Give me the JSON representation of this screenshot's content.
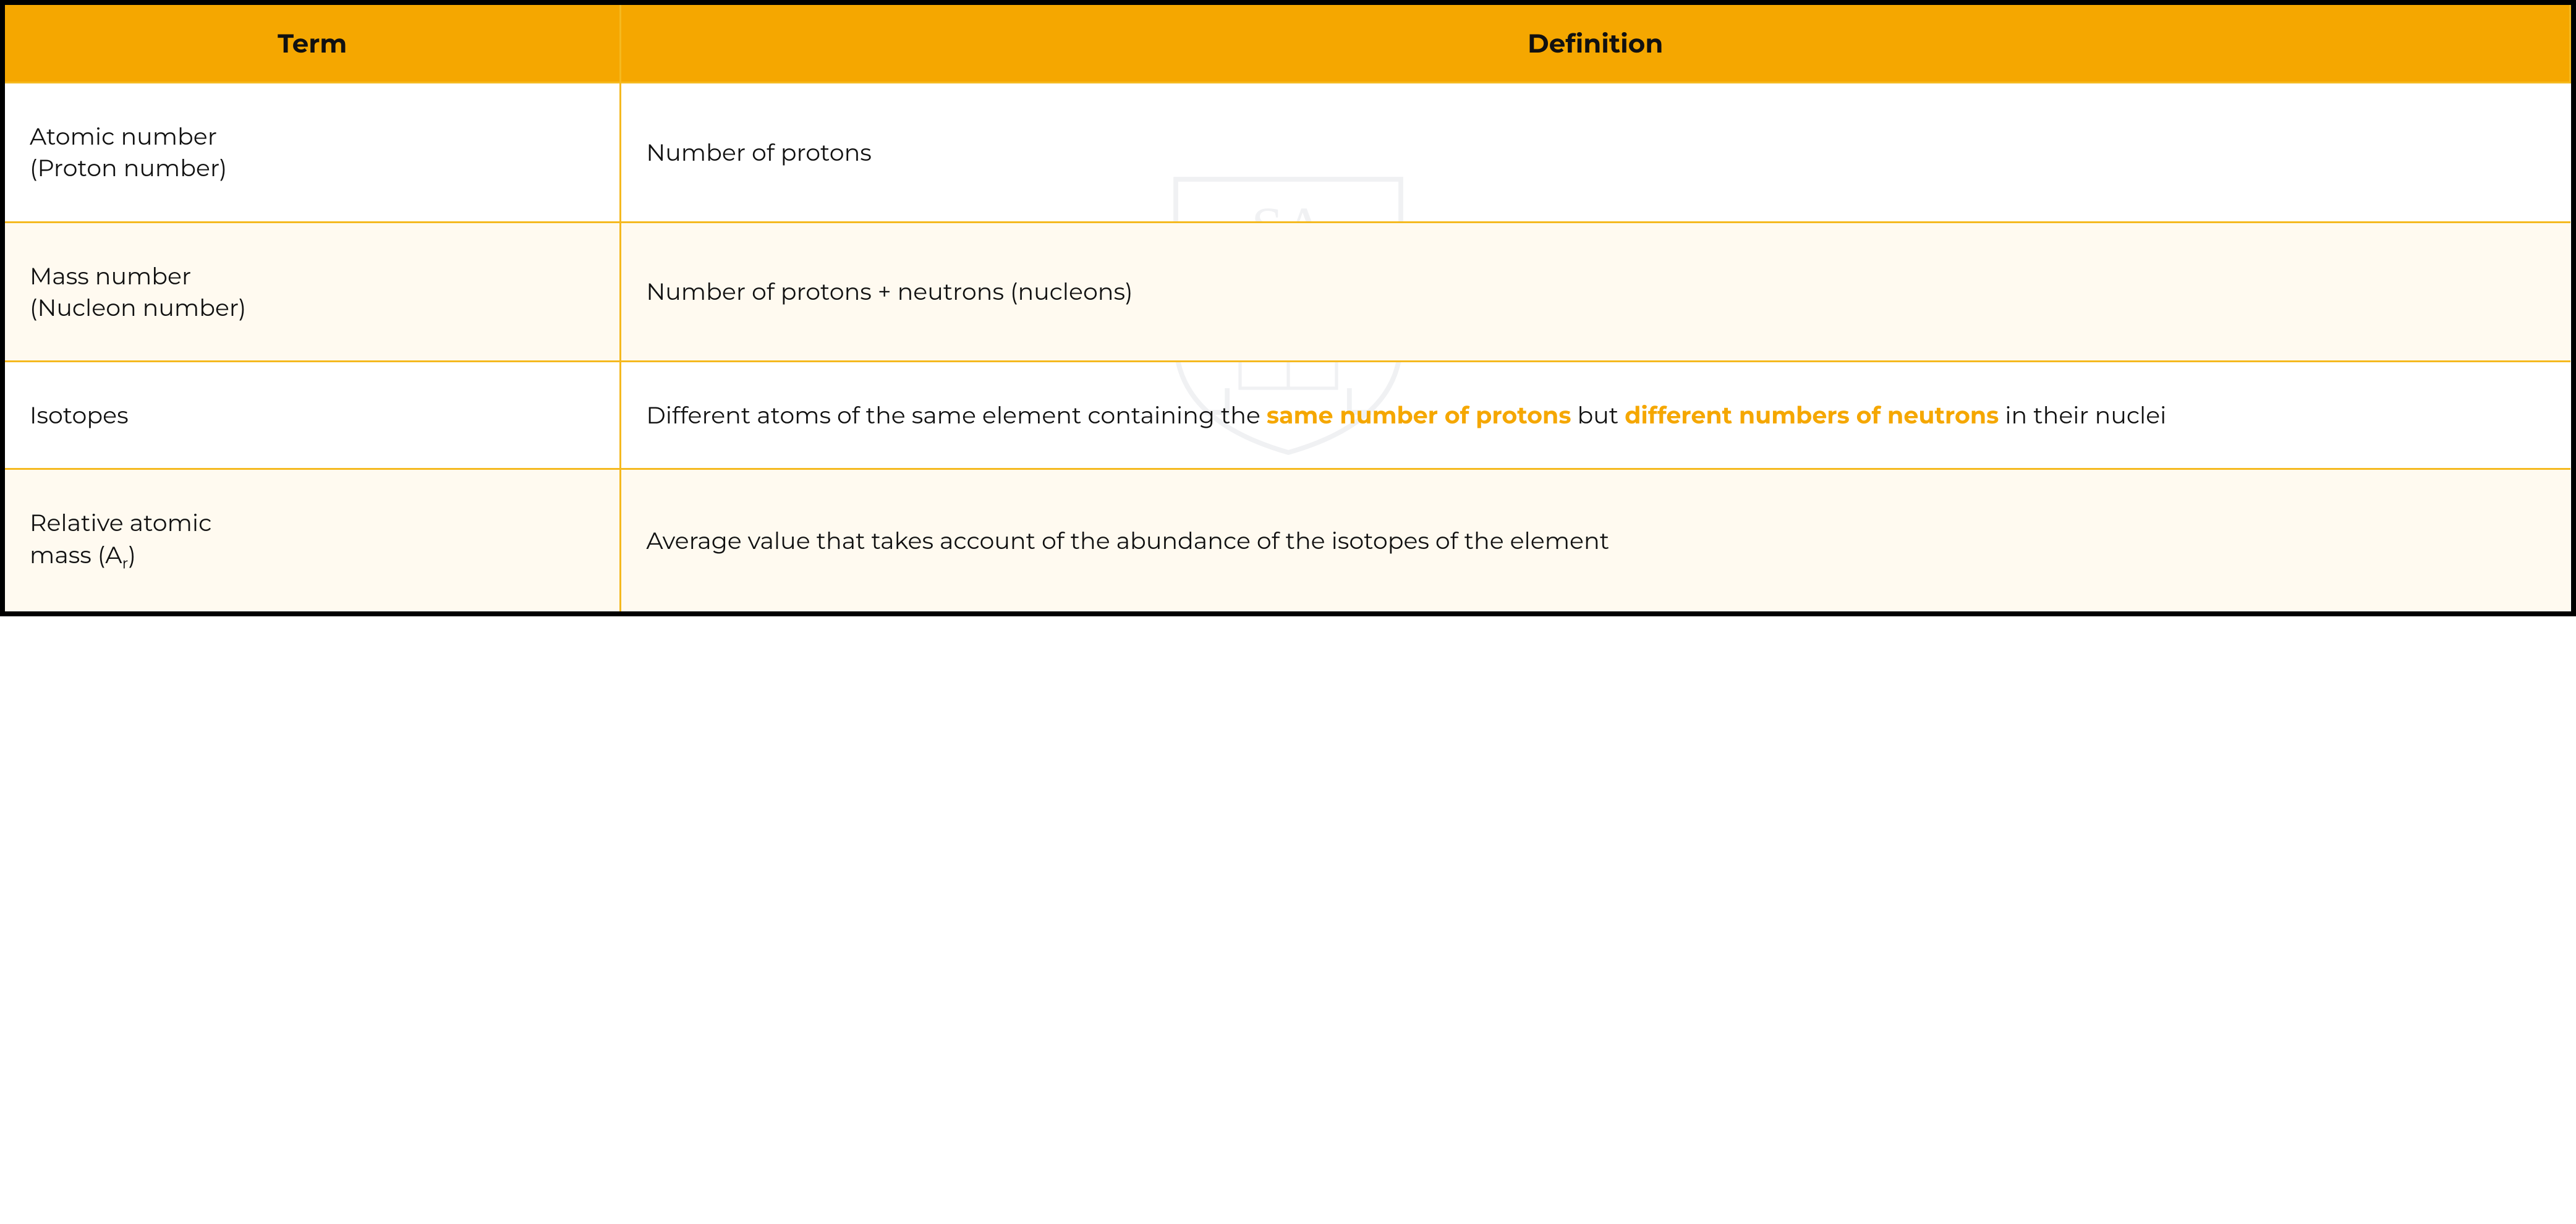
{
  "table": {
    "header_bg": "#f5a700",
    "border_color": "#f5b91f",
    "row_alt_bg": "#fffaf0",
    "hl_color": "#f5a700",
    "columns": [
      "Term",
      "Definition"
    ],
    "rows": [
      {
        "term_l1": "Atomic number",
        "term_l2": "(Proton number)",
        "has_sub": false,
        "def_pre": "Number of protons",
        "def_hl1": "",
        "def_mid": "",
        "def_hl2": "",
        "def_post": ""
      },
      {
        "term_l1": "Mass number",
        "term_l2": "(Nucleon number)",
        "has_sub": false,
        "def_pre": "Number of protons + neutrons (nucleons)",
        "def_hl1": "",
        "def_mid": "",
        "def_hl2": "",
        "def_post": ""
      },
      {
        "term_l1": "Isotopes",
        "term_l2": "",
        "has_sub": false,
        "def_pre": "Different atoms of the same element containing the ",
        "def_hl1": "same number of protons",
        "def_mid": " but ",
        "def_hl2": "different numbers of neutrons",
        "def_post": " in their nuclei"
      },
      {
        "term_l1": "Relative atomic",
        "term_l2_pre": "mass (A",
        "term_l2_sub": "r",
        "term_l2_post": ")",
        "has_sub": true,
        "def_pre": "Average value that takes account of the abundance of the isotopes of the element",
        "def_hl1": "",
        "def_mid": "",
        "def_hl2": "",
        "def_post": ""
      }
    ]
  }
}
